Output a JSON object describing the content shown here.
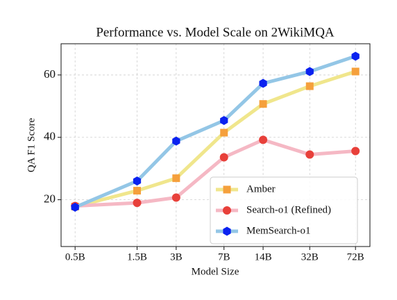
{
  "chart_data": {
    "type": "line",
    "title": "Performance vs. Model Scale on 2WikiMQA",
    "x_label": "Model Size",
    "y_label": "QA F1 Score",
    "x": [
      0.5,
      1.5,
      3,
      7,
      14,
      32,
      72
    ],
    "xlog": true,
    "xlim": [
      0.39,
      93
    ],
    "xticks": [
      {
        "value": 0.5,
        "label": "0.5B"
      },
      {
        "value": 1.5,
        "label": "1.5B"
      },
      {
        "value": 3,
        "label": "3B"
      },
      {
        "value": 7,
        "label": "7B"
      },
      {
        "value": 14,
        "label": "14B"
      },
      {
        "value": 32,
        "label": "32B"
      },
      {
        "value": 72,
        "label": "72B"
      }
    ],
    "ylim": [
      5,
      70
    ],
    "yticks": [
      20,
      40,
      60
    ],
    "grid": true,
    "legend": "lower right",
    "series": [
      {
        "name": "Amber",
        "color": "#f0e68c",
        "marker_color": "#f5a03c",
        "marker": "square",
        "values": [
          17.8,
          22.9,
          26.9,
          41.5,
          50.7,
          56.4,
          61.1
        ]
      },
      {
        "name": "Search-o1 (Refined)",
        "color": "#f5b8c4",
        "marker_color": "#e8403a",
        "marker": "circle",
        "values": [
          18.0,
          19.0,
          20.7,
          33.6,
          39.2,
          34.5,
          35.6
        ]
      },
      {
        "name": "MemSearch-o1",
        "color": "#93c6e6",
        "marker_color": "#0a22f0",
        "marker": "hexagon",
        "values": [
          17.6,
          26.0,
          38.8,
          45.4,
          57.3,
          61.1,
          66.0
        ]
      }
    ]
  }
}
